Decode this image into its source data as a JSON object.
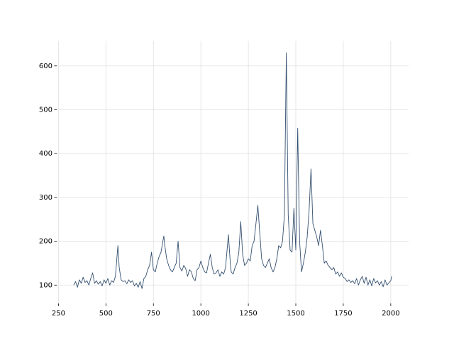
{
  "chart_data": {
    "type": "line",
    "x": [
      330,
      340,
      350,
      360,
      370,
      380,
      390,
      400,
      410,
      420,
      430,
      440,
      450,
      460,
      470,
      480,
      490,
      500,
      510,
      520,
      530,
      540,
      550,
      563,
      570,
      580,
      590,
      600,
      610,
      620,
      630,
      640,
      650,
      660,
      670,
      680,
      690,
      700,
      710,
      720,
      730,
      740,
      750,
      760,
      770,
      780,
      790,
      800,
      805,
      810,
      820,
      830,
      840,
      850,
      860,
      870,
      880,
      890,
      900,
      910,
      920,
      930,
      940,
      950,
      960,
      970,
      980,
      990,
      1000,
      1010,
      1020,
      1030,
      1040,
      1050,
      1060,
      1070,
      1080,
      1090,
      1100,
      1110,
      1120,
      1130,
      1145,
      1155,
      1160,
      1170,
      1180,
      1190,
      1200,
      1210,
      1220,
      1230,
      1240,
      1250,
      1260,
      1270,
      1280,
      1290,
      1300,
      1310,
      1320,
      1330,
      1340,
      1350,
      1360,
      1370,
      1380,
      1390,
      1400,
      1410,
      1420,
      1430,
      1440,
      1450,
      1460,
      1470,
      1480,
      1490,
      1500,
      1510,
      1520,
      1530,
      1540,
      1550,
      1560,
      1570,
      1580,
      1590,
      1600,
      1610,
      1620,
      1630,
      1640,
      1650,
      1660,
      1670,
      1680,
      1690,
      1700,
      1710,
      1720,
      1730,
      1740,
      1750,
      1760,
      1770,
      1780,
      1790,
      1800,
      1810,
      1820,
      1830,
      1840,
      1850,
      1860,
      1870,
      1880,
      1890,
      1900,
      1910,
      1920,
      1930,
      1940,
      1950,
      1960,
      1970,
      1980,
      1990,
      2000,
      2005
    ],
    "series": [
      {
        "color": "#34506f",
        "values": [
          100,
          108,
          95,
          112,
          104,
          118,
          106,
          110,
          100,
          115,
          128,
          104,
          110,
          102,
          108,
          98,
          112,
          104,
          115,
          100,
          110,
          106,
          120,
          190,
          140,
          112,
          108,
          110,
          103,
          112,
          106,
          110,
          98,
          104,
          95,
          108,
          92,
          115,
          120,
          135,
          145,
          175,
          135,
          130,
          150,
          165,
          175,
          200,
          212,
          190,
          160,
          145,
          135,
          130,
          140,
          150,
          200,
          140,
          132,
          145,
          138,
          120,
          135,
          130,
          115,
          110,
          135,
          140,
          155,
          140,
          130,
          128,
          150,
          170,
          140,
          125,
          128,
          135,
          120,
          130,
          125,
          140,
          215,
          150,
          130,
          125,
          140,
          150,
          175,
          245,
          170,
          145,
          150,
          160,
          155,
          190,
          200,
          240,
          282,
          220,
          160,
          145,
          140,
          150,
          160,
          140,
          130,
          140,
          160,
          190,
          185,
          200,
          260,
          630,
          260,
          180,
          175,
          275,
          180,
          458,
          200,
          130,
          150,
          175,
          210,
          270,
          365,
          240,
          225,
          210,
          190,
          225,
          190,
          150,
          155,
          145,
          140,
          135,
          140,
          125,
          130,
          120,
          128,
          118,
          115,
          108,
          112,
          106,
          110,
          103,
          115,
          100,
          112,
          120,
          104,
          118,
          100,
          112,
          98,
          115,
          105,
          110,
          100,
          108,
          96,
          112,
          100,
          105,
          110,
          120
        ]
      }
    ],
    "xlim": [
      241,
      2094
    ],
    "ylim": [
      58,
      657
    ],
    "xticks": [
      250,
      500,
      750,
      1000,
      1250,
      1500,
      1750,
      2000
    ],
    "yticks": [
      100,
      200,
      300,
      400,
      500,
      600
    ],
    "grid": true
  }
}
